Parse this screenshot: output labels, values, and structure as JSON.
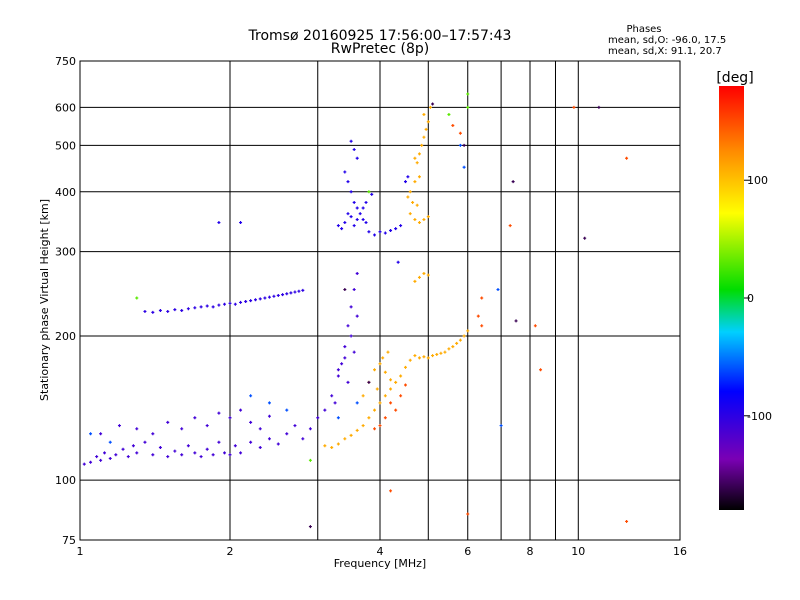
{
  "chart_data": {
    "type": "scatter",
    "title": "Tromsø 20160925 17:56:00–17:57:43",
    "subtitle": "RwPretec (8p)",
    "info_title": "Phases",
    "info_lines": [
      "mean, sd,O: -96.0, 17.5",
      "mean, sd,X:  91.1, 20.7"
    ],
    "xlabel": "Frequency [MHz]",
    "ylabel": "Stationary phase Virtual Height [km]",
    "x_scale": "log",
    "y_scale": "log",
    "xlim": [
      1,
      16
    ],
    "ylim": [
      75,
      750
    ],
    "x_ticks": [
      1,
      2,
      4,
      6,
      8,
      10,
      16
    ],
    "x_grid": [
      2,
      3,
      4,
      5,
      6,
      7,
      8,
      9,
      10
    ],
    "y_ticks": [
      75,
      100,
      200,
      300,
      400,
      500,
      600,
      750
    ],
    "y_grid": [
      100,
      200,
      300,
      400,
      500,
      600
    ],
    "grid": true,
    "colorbar": {
      "label": "[deg]",
      "range": [
        -180,
        180
      ],
      "ticks": [
        -100,
        0,
        100
      ]
    },
    "series": [
      {
        "phase": -110,
        "points": [
          [
            1.02,
            108
          ],
          [
            1.05,
            109
          ],
          [
            1.08,
            112
          ],
          [
            1.1,
            110
          ],
          [
            1.12,
            114
          ],
          [
            1.15,
            111
          ],
          [
            1.18,
            113
          ],
          [
            1.22,
            116
          ],
          [
            1.25,
            112
          ],
          [
            1.28,
            118
          ],
          [
            1.3,
            114
          ],
          [
            1.35,
            120
          ],
          [
            1.4,
            113
          ],
          [
            1.45,
            117
          ],
          [
            1.5,
            112
          ],
          [
            1.55,
            115
          ],
          [
            1.6,
            113
          ],
          [
            1.65,
            118
          ],
          [
            1.7,
            114
          ],
          [
            1.75,
            112
          ],
          [
            1.8,
            116
          ],
          [
            1.85,
            113
          ],
          [
            1.9,
            120
          ],
          [
            1.95,
            114
          ],
          [
            2.0,
            113
          ],
          [
            2.05,
            118
          ],
          [
            2.1,
            114
          ],
          [
            2.2,
            120
          ],
          [
            2.3,
            117
          ],
          [
            2.4,
            122
          ],
          [
            2.5,
            119
          ],
          [
            2.6,
            125
          ],
          [
            2.7,
            130
          ],
          [
            2.8,
            122
          ],
          [
            2.9,
            128
          ],
          [
            3.0,
            135
          ],
          [
            3.1,
            140
          ],
          [
            3.2,
            150
          ],
          [
            3.3,
            165
          ],
          [
            3.35,
            175
          ],
          [
            3.4,
            190
          ],
          [
            3.45,
            210
          ],
          [
            3.5,
            230
          ],
          [
            3.55,
            250
          ],
          [
            3.6,
            270
          ],
          [
            3.5,
            200
          ],
          [
            3.4,
            180
          ],
          [
            3.3,
            170
          ],
          [
            3.6,
            220
          ],
          [
            3.55,
            185
          ],
          [
            3.45,
            160
          ],
          [
            3.25,
            145
          ],
          [
            1.1,
            125
          ],
          [
            1.2,
            130
          ],
          [
            1.3,
            128
          ],
          [
            1.4,
            125
          ],
          [
            1.5,
            132
          ],
          [
            1.6,
            128
          ],
          [
            1.7,
            135
          ],
          [
            1.8,
            130
          ],
          [
            1.9,
            138
          ],
          [
            2.0,
            135
          ],
          [
            2.1,
            140
          ],
          [
            2.2,
            132
          ],
          [
            2.3,
            128
          ],
          [
            2.4,
            136
          ]
        ]
      },
      {
        "phase": -100,
        "points": [
          [
            1.35,
            225
          ],
          [
            1.4,
            224
          ],
          [
            1.45,
            226
          ],
          [
            1.5,
            225
          ],
          [
            1.55,
            227
          ],
          [
            1.6,
            226
          ],
          [
            1.65,
            228
          ],
          [
            1.7,
            229
          ],
          [
            1.75,
            230
          ],
          [
            1.8,
            231
          ],
          [
            1.85,
            230
          ],
          [
            1.9,
            232
          ],
          [
            1.95,
            233
          ],
          [
            2.0,
            234
          ],
          [
            2.05,
            233
          ],
          [
            2.1,
            235
          ],
          [
            2.15,
            236
          ],
          [
            2.2,
            237
          ],
          [
            2.25,
            238
          ],
          [
            2.3,
            239
          ],
          [
            2.35,
            240
          ],
          [
            2.4,
            241
          ],
          [
            2.45,
            242
          ],
          [
            2.5,
            243
          ],
          [
            2.55,
            244
          ],
          [
            2.6,
            245
          ],
          [
            2.65,
            246
          ],
          [
            2.7,
            247
          ],
          [
            2.75,
            248
          ],
          [
            2.8,
            249
          ]
        ]
      },
      {
        "phase": -95,
        "points": [
          [
            3.5,
            510
          ],
          [
            3.55,
            490
          ],
          [
            3.6,
            470
          ],
          [
            3.4,
            440
          ],
          [
            3.45,
            420
          ],
          [
            3.5,
            400
          ],
          [
            3.55,
            380
          ],
          [
            3.6,
            370
          ],
          [
            3.65,
            360
          ],
          [
            3.7,
            350
          ],
          [
            3.75,
            345
          ],
          [
            3.45,
            360
          ],
          [
            3.5,
            355
          ],
          [
            3.3,
            340
          ],
          [
            3.35,
            335
          ],
          [
            3.4,
            345
          ],
          [
            3.55,
            340
          ],
          [
            3.6,
            350
          ],
          [
            3.7,
            370
          ],
          [
            3.8,
            330
          ],
          [
            3.9,
            325
          ],
          [
            4.0,
            330
          ],
          [
            4.1,
            328
          ],
          [
            4.2,
            332
          ],
          [
            4.3,
            335
          ],
          [
            4.4,
            340
          ],
          [
            3.85,
            395
          ],
          [
            3.75,
            380
          ],
          [
            1.9,
            345
          ],
          [
            2.1,
            345
          ],
          [
            4.5,
            420
          ],
          [
            4.55,
            430
          ],
          [
            4.35,
            285
          ]
        ]
      },
      {
        "phase": 110,
        "points": [
          [
            3.1,
            118
          ],
          [
            3.2,
            117
          ],
          [
            3.3,
            119
          ],
          [
            3.4,
            122
          ],
          [
            3.5,
            124
          ],
          [
            3.6,
            127
          ],
          [
            3.7,
            130
          ],
          [
            3.8,
            135
          ],
          [
            3.9,
            140
          ],
          [
            4.0,
            145
          ],
          [
            4.1,
            150
          ],
          [
            4.2,
            155
          ],
          [
            4.3,
            160
          ],
          [
            4.4,
            165
          ],
          [
            4.5,
            172
          ],
          [
            4.6,
            178
          ],
          [
            4.7,
            182
          ],
          [
            4.8,
            180
          ],
          [
            4.9,
            181
          ],
          [
            5.0,
            180
          ],
          [
            5.1,
            182
          ],
          [
            5.2,
            183
          ],
          [
            5.3,
            184
          ],
          [
            5.4,
            185
          ],
          [
            5.5,
            188
          ],
          [
            5.6,
            190
          ],
          [
            5.7,
            193
          ],
          [
            5.8,
            196
          ],
          [
            5.9,
            200
          ],
          [
            6.0,
            205
          ],
          [
            3.7,
            150
          ],
          [
            3.8,
            160
          ],
          [
            3.9,
            170
          ],
          [
            4.0,
            175
          ],
          [
            4.1,
            168
          ],
          [
            4.2,
            162
          ],
          [
            3.95,
            155
          ],
          [
            4.05,
            180
          ],
          [
            4.15,
            185
          ],
          [
            4.7,
            260
          ],
          [
            4.8,
            265
          ],
          [
            4.9,
            270
          ],
          [
            5.0,
            268
          ],
          [
            4.6,
            360
          ],
          [
            4.7,
            350
          ],
          [
            4.8,
            345
          ],
          [
            4.9,
            350
          ],
          [
            5.0,
            355
          ],
          [
            4.65,
            380
          ],
          [
            4.75,
            375
          ],
          [
            4.55,
            390
          ],
          [
            4.7,
            420
          ],
          [
            4.75,
            460
          ],
          [
            4.8,
            480
          ],
          [
            4.85,
            500
          ],
          [
            4.9,
            520
          ],
          [
            4.95,
            540
          ],
          [
            5.0,
            560
          ],
          [
            4.9,
            580
          ],
          [
            5.05,
            600
          ],
          [
            4.7,
            470
          ],
          [
            4.8,
            430
          ],
          [
            4.6,
            400
          ]
        ]
      },
      {
        "phase": 30,
        "points": [
          [
            1.3,
            240
          ],
          [
            3.8,
            400
          ],
          [
            2.9,
            110
          ],
          [
            6.0,
            640
          ],
          [
            6.0,
            600
          ],
          [
            5.5,
            580
          ]
        ]
      },
      {
        "phase": 150,
        "points": [
          [
            4.2,
            145
          ],
          [
            4.3,
            140
          ],
          [
            4.4,
            150
          ],
          [
            4.1,
            135
          ],
          [
            4.5,
            158
          ],
          [
            4.0,
            130
          ],
          [
            3.9,
            128
          ],
          [
            5.6,
            550
          ],
          [
            5.8,
            530
          ],
          [
            6.3,
            220
          ],
          [
            6.4,
            210
          ],
          [
            7.3,
            340
          ],
          [
            8.2,
            210
          ],
          [
            8.4,
            170
          ],
          [
            9.8,
            600
          ],
          [
            12.5,
            470
          ],
          [
            12.5,
            82
          ],
          [
            6.0,
            85
          ],
          [
            4.2,
            95
          ],
          [
            6.4,
            240
          ]
        ]
      },
      {
        "phase": -60,
        "points": [
          [
            1.05,
            125
          ],
          [
            1.15,
            120
          ],
          [
            2.2,
            150
          ],
          [
            2.4,
            145
          ],
          [
            2.6,
            140
          ],
          [
            3.3,
            135
          ],
          [
            3.6,
            145
          ],
          [
            5.9,
            450
          ],
          [
            5.8,
            500
          ],
          [
            6.9,
            250
          ],
          [
            7.0,
            130
          ]
        ]
      },
      {
        "phase": -160,
        "points": [
          [
            7.4,
            420
          ],
          [
            7.5,
            215
          ],
          [
            5.9,
            500
          ],
          [
            5.1,
            610
          ],
          [
            10.3,
            320
          ],
          [
            11.0,
            600
          ],
          [
            2.9,
            80
          ],
          [
            3.8,
            160
          ],
          [
            3.4,
            250
          ]
        ]
      }
    ]
  }
}
